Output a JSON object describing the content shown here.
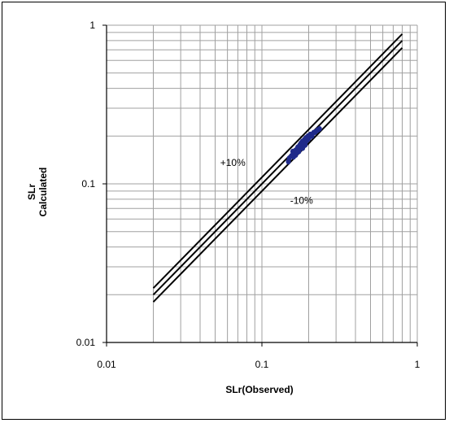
{
  "chart_data": {
    "type": "scatter",
    "title": "",
    "xlabel": "SLr(Observed)",
    "ylabel_lines": [
      "SLr",
      "Calculated"
    ],
    "xscale": "log",
    "yscale": "log",
    "xlim": [
      0.01,
      1
    ],
    "ylim": [
      0.01,
      1
    ],
    "x_ticks": [
      0.01,
      0.1,
      1
    ],
    "x_tick_labels": [
      "0.01",
      "0.1",
      "1"
    ],
    "y_ticks": [
      0.01,
      0.1,
      1
    ],
    "y_tick_labels": [
      "0.01",
      "0.1",
      "1"
    ],
    "grid": "major and minor",
    "legend": "none",
    "reference_lines": [
      {
        "factor": 1.1,
        "x_range": [
          0.02,
          0.8
        ]
      },
      {
        "factor": 1.0,
        "x_range": [
          0.02,
          0.8
        ]
      },
      {
        "factor": 0.9,
        "x_range": [
          0.02,
          0.8
        ]
      }
    ],
    "annotations": [
      {
        "text": "+10%",
        "x": 0.065,
        "y": 0.13
      },
      {
        "text": "-10%",
        "x": 0.18,
        "y": 0.075
      }
    ],
    "series": [
      {
        "marker_color": "#1f2a8a",
        "points": [
          [
            0.148,
            0.138
          ],
          [
            0.15,
            0.145
          ],
          [
            0.155,
            0.15
          ],
          [
            0.158,
            0.16
          ],
          [
            0.16,
            0.148
          ],
          [
            0.162,
            0.155
          ],
          [
            0.165,
            0.163
          ],
          [
            0.168,
            0.158
          ],
          [
            0.17,
            0.17
          ],
          [
            0.172,
            0.165
          ],
          [
            0.175,
            0.175
          ],
          [
            0.176,
            0.168
          ],
          [
            0.178,
            0.18
          ],
          [
            0.18,
            0.172
          ],
          [
            0.182,
            0.185
          ],
          [
            0.185,
            0.178
          ],
          [
            0.188,
            0.19
          ],
          [
            0.19,
            0.182
          ],
          [
            0.192,
            0.195
          ],
          [
            0.195,
            0.188
          ],
          [
            0.198,
            0.2
          ],
          [
            0.2,
            0.193
          ],
          [
            0.205,
            0.205
          ],
          [
            0.21,
            0.2
          ],
          [
            0.215,
            0.21
          ],
          [
            0.22,
            0.212
          ],
          [
            0.228,
            0.218
          ],
          [
            0.235,
            0.222
          ],
          [
            0.173,
            0.16
          ],
          [
            0.183,
            0.168
          ],
          [
            0.165,
            0.152
          ],
          [
            0.19,
            0.176
          ]
        ]
      }
    ],
    "colors": {
      "grid": "#a0a0a0",
      "axis": "#000000",
      "reference_line": "#000000"
    }
  }
}
